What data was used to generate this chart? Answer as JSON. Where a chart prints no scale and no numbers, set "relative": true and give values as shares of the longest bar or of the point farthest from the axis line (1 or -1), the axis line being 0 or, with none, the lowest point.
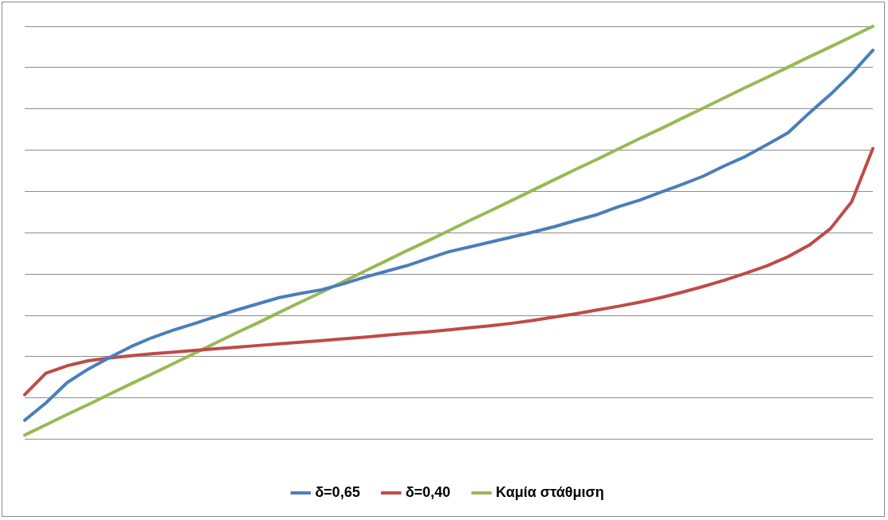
{
  "chart_data": {
    "type": "line",
    "relative": true,
    "grid": "y",
    "legend": "bottom",
    "marker": "none",
    "line_style": "solid",
    "categories": [
      null,
      null,
      null,
      null,
      null,
      null,
      null,
      null,
      null,
      null,
      null,
      null,
      null,
      null,
      null,
      null,
      null,
      null,
      null,
      null,
      null,
      null,
      null,
      null,
      null,
      null,
      null,
      null,
      null,
      null,
      null,
      null,
      null,
      null,
      null,
      null,
      null,
      null,
      null,
      null,
      null
    ],
    "series": [
      {
        "name": "δ=0,65",
        "color": "#4a7ebb",
        "values": [
          0.046,
          0.088,
          0.137,
          0.17,
          0.198,
          0.224,
          0.246,
          0.264,
          0.28,
          0.297,
          0.313,
          0.328,
          0.343,
          0.353,
          0.362,
          0.376,
          0.392,
          0.406,
          0.42,
          0.437,
          0.454,
          0.466,
          0.478,
          0.49,
          0.502,
          0.515,
          0.53,
          0.544,
          0.563,
          0.579,
          0.598,
          0.617,
          0.637,
          0.662,
          0.685,
          0.713,
          0.742,
          0.79,
          0.835,
          0.885,
          0.942
        ]
      },
      {
        "name": "δ=0,40",
        "color": "#be4b48",
        "values": [
          0.108,
          0.16,
          0.178,
          0.19,
          0.197,
          0.202,
          0.207,
          0.211,
          0.215,
          0.219,
          0.223,
          0.227,
          0.231,
          0.235,
          0.239,
          0.243,
          0.247,
          0.252,
          0.256,
          0.26,
          0.265,
          0.27,
          0.275,
          0.281,
          0.288,
          0.296,
          0.304,
          0.313,
          0.322,
          0.332,
          0.343,
          0.356,
          0.37,
          0.385,
          0.402,
          0.42,
          0.442,
          0.47,
          0.51,
          0.575,
          0.704
        ]
      },
      {
        "name": "Καμία στάθμιση",
        "color": "#98b954",
        "values": [
          0.01,
          0.035,
          0.06,
          0.084,
          0.109,
          0.134,
          0.158,
          0.183,
          0.208,
          0.233,
          0.258,
          0.282,
          0.307,
          0.332,
          0.356,
          0.381,
          0.406,
          0.431,
          0.456,
          0.48,
          0.505,
          0.53,
          0.554,
          0.579,
          0.604,
          0.629,
          0.654,
          0.678,
          0.703,
          0.728,
          0.752,
          0.777,
          0.802,
          0.827,
          0.852,
          0.876,
          0.901,
          0.926,
          0.95,
          0.975,
          1
        ]
      }
    ]
  }
}
